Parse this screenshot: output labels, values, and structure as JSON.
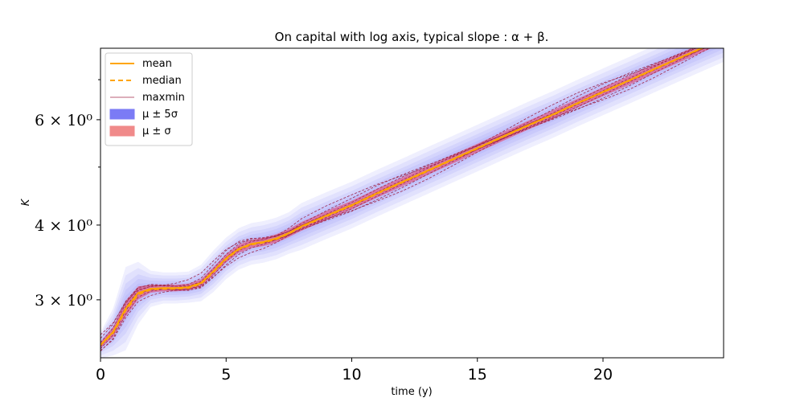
{
  "chart_data": {
    "type": "line",
    "title": "On capital with log axis, typical slope : α + β.",
    "xlabel": "time (y)",
    "ylabel": "K",
    "xlim": [
      0,
      24.8
    ],
    "ylim": [
      2.4,
      7.9
    ],
    "yscale": "log",
    "xticks": [
      0,
      5,
      10,
      15,
      20
    ],
    "xtick_labels": [
      "0",
      "5",
      "10",
      "15",
      "20"
    ],
    "yticks": [
      3,
      4,
      6
    ],
    "ytick_labels": [
      "3 × 10⁰",
      "4 × 10⁰",
      "6 × 10⁰"
    ],
    "legend_position": "upper left",
    "grid": false,
    "legend": [
      {
        "label": "mean",
        "style": "line",
        "color": "#ffa500"
      },
      {
        "label": "median",
        "style": "dashed",
        "color": "#ffa500"
      },
      {
        "label": "maxmin",
        "style": "thin",
        "color": "#a0284a"
      },
      {
        "label": "μ ± 5σ",
        "style": "patch",
        "color": "#7b7bf5"
      },
      {
        "label": "μ ± σ",
        "style": "patch",
        "color": "#f08a8a"
      }
    ],
    "x": [
      0,
      0.5,
      1,
      1.5,
      2,
      2.5,
      3,
      3.5,
      4,
      4.5,
      5,
      5.5,
      6,
      6.5,
      7,
      7.5,
      8,
      9,
      10,
      11,
      12,
      13,
      14,
      15,
      16,
      17,
      18,
      19,
      20,
      21,
      22,
      23,
      24,
      24.8
    ],
    "series": [
      {
        "name": "mean",
        "values": [
          2.52,
          2.65,
          2.9,
          3.08,
          3.13,
          3.14,
          3.14,
          3.15,
          3.2,
          3.35,
          3.52,
          3.65,
          3.72,
          3.75,
          3.8,
          3.88,
          3.98,
          4.15,
          4.32,
          4.52,
          4.72,
          4.93,
          5.15,
          5.38,
          5.62,
          5.87,
          6.12,
          6.4,
          6.68,
          6.97,
          7.28,
          7.6,
          7.93,
          8.2
        ]
      },
      {
        "name": "median",
        "values": [
          2.52,
          2.64,
          2.88,
          3.06,
          3.12,
          3.13,
          3.13,
          3.14,
          3.19,
          3.34,
          3.51,
          3.64,
          3.71,
          3.74,
          3.79,
          3.87,
          3.97,
          4.14,
          4.31,
          4.51,
          4.71,
          4.92,
          5.14,
          5.37,
          5.61,
          5.86,
          6.11,
          6.39,
          6.67,
          6.96,
          7.27,
          7.59,
          7.92,
          8.19
        ]
      }
    ],
    "bands": [
      {
        "name": "μ ± 5σ",
        "spread": [
          0.05,
          0.09,
          0.16,
          0.12,
          0.07,
          0.06,
          0.06,
          0.06,
          0.07,
          0.08,
          0.08,
          0.08,
          0.08,
          0.08,
          0.08,
          0.08,
          0.09,
          0.09,
          0.09,
          0.09,
          0.09,
          0.09,
          0.09,
          0.09,
          0.09,
          0.09,
          0.09,
          0.09,
          0.09,
          0.09,
          0.09,
          0.09,
          0.09,
          0.09
        ]
      },
      {
        "name": "μ ± σ",
        "spread": [
          0.012,
          0.02,
          0.03,
          0.025,
          0.015,
          0.013,
          0.013,
          0.013,
          0.014,
          0.016,
          0.016,
          0.016,
          0.016,
          0.016,
          0.016,
          0.016,
          0.017,
          0.017,
          0.017,
          0.017,
          0.017,
          0.017,
          0.017,
          0.017,
          0.017,
          0.017,
          0.017,
          0.017,
          0.017,
          0.017,
          0.017,
          0.017,
          0.017,
          0.017
        ]
      }
    ],
    "maxmin_offsets": [
      -0.035,
      -0.025,
      -0.015,
      -0.008,
      0.0,
      0.01,
      0.02,
      0.03,
      0.04
    ]
  }
}
